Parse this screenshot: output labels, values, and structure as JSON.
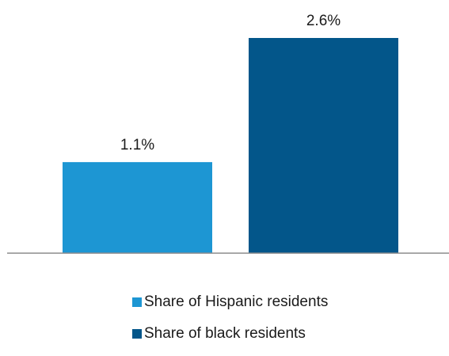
{
  "chart_data": {
    "type": "bar",
    "categories": [
      "Share of Hispanic residents",
      "Share of black residents"
    ],
    "values": [
      1.1,
      2.6
    ],
    "value_labels": [
      "1.1%",
      "2.6%"
    ],
    "colors": [
      "#1d96d3",
      "#03568a"
    ],
    "title": "",
    "xlabel": "",
    "ylabel": "",
    "ylim": [
      0,
      2.6
    ],
    "grid": false,
    "legend_position": "bottom",
    "legend": [
      {
        "label": "Share of Hispanic residents",
        "color": "#1d96d3"
      },
      {
        "label": "Share of black residents",
        "color": "#03568a"
      }
    ]
  }
}
